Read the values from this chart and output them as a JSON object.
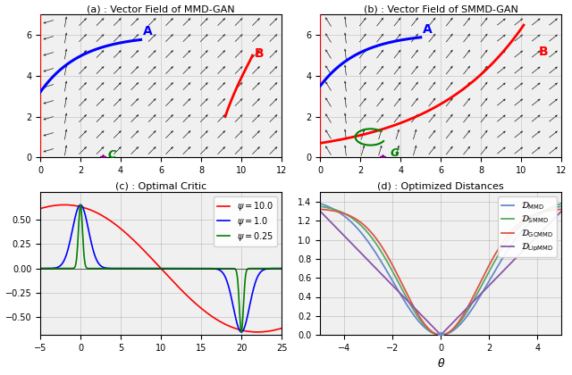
{
  "title_a": "(a) : Vector Field of MMD-GAN",
  "title_b": "(b) : Vector Field of SMMD-GAN",
  "title_c": "(c) : Optimal Critic",
  "title_d": "(d) : Optimized Distances",
  "xlim_ab": [
    0,
    12
  ],
  "ylim_ab": [
    0,
    7
  ],
  "xlim_c": [
    -5,
    25
  ],
  "ylim_c": [
    -0.65,
    0.75
  ],
  "xlim_d": [
    -5,
    5
  ],
  "ylim_d": [
    0,
    1.5
  ],
  "psi_values": [
    10.0,
    1.0,
    0.25
  ],
  "psi_colors": [
    "red",
    "blue",
    "green"
  ],
  "psi_labels": [
    "\\psi = 10.0",
    "\\psi = 1.0",
    "\\psi = 0.25"
  ],
  "dist_colors": [
    "#6688cc",
    "#55aa66",
    "#dd5544",
    "#8855aa"
  ],
  "bg_color": "#f0f0f0"
}
